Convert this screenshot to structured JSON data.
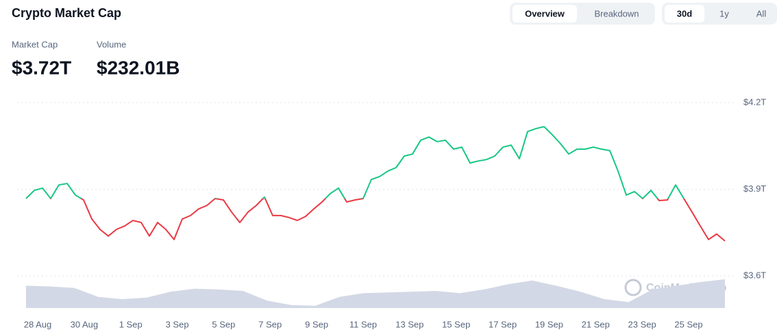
{
  "header": {
    "title": "Crypto Market Cap",
    "tabs": [
      "Overview",
      "Breakdown"
    ],
    "ranges": [
      "30d",
      "1y",
      "All"
    ],
    "stats": [
      {
        "label": "Market Cap",
        "value": "$3.72T"
      },
      {
        "label": "Volume",
        "value": "$232.01B"
      }
    ],
    "watermark": "CoinMarketCap"
  },
  "chart_data": {
    "type": "line",
    "xticks": [
      "28 Aug",
      "30 Aug",
      "1 Sep",
      "3 Sep",
      "5 Sep",
      "7 Sep",
      "9 Sep",
      "11 Sep",
      "13 Sep",
      "15 Sep",
      "17 Sep",
      "19 Sep",
      "21 Sep",
      "23 Sep",
      "25 Sep"
    ],
    "ylim": [
      3.6,
      4.2
    ],
    "yticks": [
      {
        "value": 4.2,
        "label": "$4.2T"
      },
      {
        "value": 3.9,
        "label": "$3.9T"
      },
      {
        "value": 3.6,
        "label": "$3.6T"
      }
    ],
    "grid": true,
    "series": [
      {
        "name": "Market Cap",
        "up_color": "#16c784",
        "down_color": "#ea3943",
        "values": [
          3.868,
          3.896,
          3.904,
          3.868,
          3.915,
          3.92,
          3.88,
          3.863,
          3.797,
          3.761,
          3.738,
          3.761,
          3.773,
          3.792,
          3.785,
          3.738,
          3.785,
          3.761,
          3.726,
          3.797,
          3.809,
          3.832,
          3.844,
          3.868,
          3.863,
          3.821,
          3.785,
          3.821,
          3.844,
          3.873,
          3.809,
          3.809,
          3.802,
          3.792,
          3.806,
          3.832,
          3.856,
          3.885,
          3.904,
          3.856,
          3.863,
          3.868,
          3.934,
          3.944,
          3.963,
          3.975,
          4.015,
          4.022,
          4.07,
          4.081,
          4.065,
          4.07,
          4.039,
          4.046,
          3.991,
          3.998,
          4.003,
          4.015,
          4.046,
          4.053,
          4.006,
          4.1,
          4.11,
          4.117,
          4.089,
          4.058,
          4.022,
          4.039,
          4.039,
          4.046,
          4.039,
          4.034,
          3.963,
          3.88,
          3.892,
          3.868,
          3.896,
          3.861,
          3.863,
          3.915,
          3.868,
          3.821,
          3.773,
          3.726,
          3.745,
          3.721
        ]
      },
      {
        "name": "Volume",
        "color": "#d3d8e6",
        "values": [
          180,
          174,
          162,
          90,
          72,
          84,
          132,
          156,
          150,
          138,
          60,
          24,
          18,
          90,
          120,
          126,
          132,
          138,
          120,
          150,
          192,
          222,
          180,
          132,
          72,
          48,
          150,
          180,
          210,
          232
        ]
      }
    ]
  }
}
